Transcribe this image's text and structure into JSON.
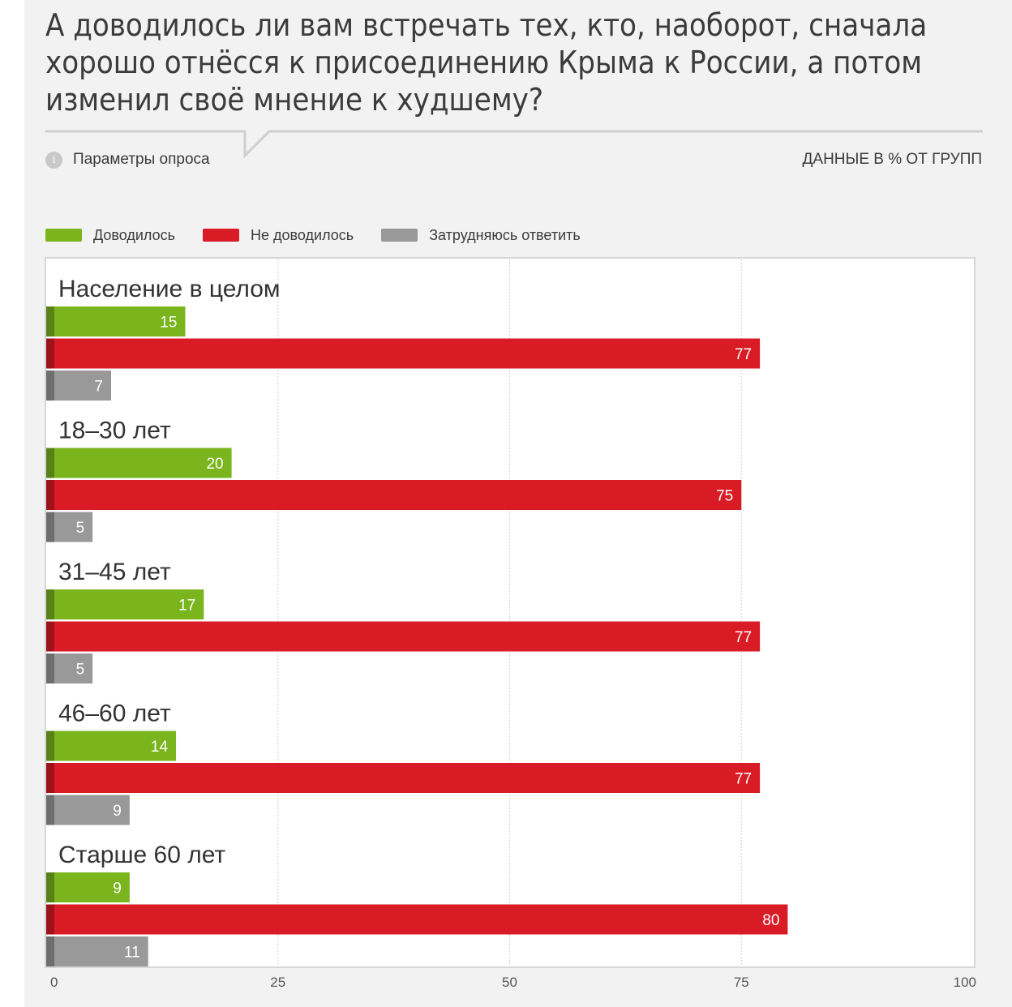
{
  "header": {
    "title": "А доводилось ли вам встречать тех, кто, наоборот, сначала хорошо отнёсся к присоединению Крыма к России, а потом изменил своё мнение к худшему?",
    "params_label": "Параметры опроса",
    "units_label": "ДАННЫЕ В % ОТ ГРУПП",
    "info_icon": "i"
  },
  "colors": {
    "green": "#7ab51d",
    "red": "#d81b25",
    "gray": "#999999"
  },
  "chart_data": {
    "type": "bar",
    "orientation": "horizontal",
    "title": "",
    "categories": [
      "Население в целом",
      "18–30 лет",
      "31–45 лет",
      "46–60 лет",
      "Старше 60 лет"
    ],
    "series": [
      {
        "name": "Доводилось",
        "color": "#7ab51d",
        "values": [
          15,
          20,
          17,
          14,
          9
        ]
      },
      {
        "name": "Не доводилось",
        "color": "#d81b25",
        "values": [
          77,
          75,
          77,
          77,
          80
        ]
      },
      {
        "name": "Затрудняюсь ответить",
        "color": "#999999",
        "values": [
          7,
          5,
          5,
          9,
          11
        ]
      }
    ],
    "xlim": [
      0,
      100
    ],
    "xticks": [
      0,
      25,
      50,
      75,
      100
    ],
    "grid": true,
    "legend_position": "top-left",
    "data_labels": true
  }
}
